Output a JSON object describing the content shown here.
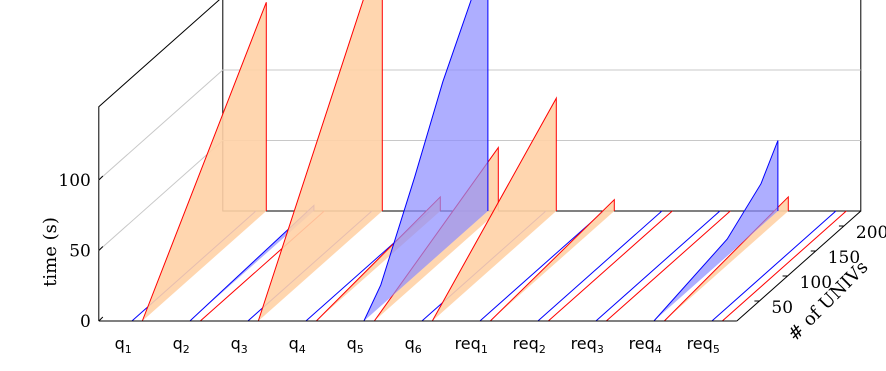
{
  "chart_data": {
    "type": "area",
    "title": "",
    "xlabel": "",
    "ylabel": "# of UNIVs",
    "zlabel": "time (s)",
    "categories": [
      {
        "base": "q",
        "sub": "1"
      },
      {
        "base": "q",
        "sub": "2"
      },
      {
        "base": "q",
        "sub": "3"
      },
      {
        "base": "q",
        "sub": "4"
      },
      {
        "base": "q",
        "sub": "5"
      },
      {
        "base": "q",
        "sub": "6"
      },
      {
        "base": "req",
        "sub": "1"
      },
      {
        "base": "req",
        "sub": "2"
      },
      {
        "base": "req",
        "sub": "3"
      },
      {
        "base": "req",
        "sub": "4"
      },
      {
        "base": "req",
        "sub": "5"
      }
    ],
    "y_ticks": [
      50,
      100,
      150,
      200
    ],
    "z_ticks": [
      0,
      50,
      100
    ],
    "ylim": [
      10,
      230
    ],
    "zlim": [
      0,
      150
    ],
    "grid": true,
    "colors": {
      "system_a": "#ff0000",
      "system_a_fill": "#ffd2a6",
      "system_b": "#0000ff",
      "system_b_fill": "#8c8cff"
    },
    "series": [
      {
        "query": 0,
        "system": "b",
        "values": [
          [
            10,
            0
          ],
          [
            230,
            0
          ]
        ]
      },
      {
        "query": 0,
        "system": "a",
        "values": [
          [
            10,
            0
          ],
          [
            230,
            148
          ]
        ]
      },
      {
        "query": 1,
        "system": "a",
        "values": [
          [
            10,
            0
          ],
          [
            230,
            0
          ]
        ]
      },
      {
        "query": 1,
        "system": "b",
        "values": [
          [
            10,
            0
          ],
          [
            230,
            4
          ]
        ]
      },
      {
        "query": 2,
        "system": "b",
        "values": [
          [
            10,
            0
          ],
          [
            230,
            0
          ]
        ]
      },
      {
        "query": 2,
        "system": "a",
        "values": [
          [
            10,
            0
          ],
          [
            230,
            191
          ]
        ]
      },
      {
        "query": 3,
        "system": "b",
        "values": [
          [
            10,
            0
          ],
          [
            230,
            0
          ]
        ]
      },
      {
        "query": 3,
        "system": "a",
        "values": [
          [
            10,
            0
          ],
          [
            230,
            10
          ]
        ]
      },
      {
        "query": 4,
        "system": "a",
        "values": [
          [
            10,
            0
          ],
          [
            230,
            45
          ]
        ]
      },
      {
        "query": 4,
        "system": "b",
        "values": [
          [
            10,
            0
          ],
          [
            40,
            15
          ],
          [
            100,
            70
          ],
          [
            150,
            120
          ],
          [
            200,
            160
          ],
          [
            230,
            222
          ]
        ]
      },
      {
        "query": 5,
        "system": "b",
        "values": [
          [
            10,
            0
          ],
          [
            230,
            0
          ]
        ]
      },
      {
        "query": 5,
        "system": "a",
        "values": [
          [
            10,
            0
          ],
          [
            230,
            80
          ]
        ]
      },
      {
        "query": 6,
        "system": "b",
        "values": [
          [
            10,
            0
          ],
          [
            230,
            0
          ]
        ]
      },
      {
        "query": 6,
        "system": "a",
        "values": [
          [
            10,
            0
          ],
          [
            230,
            8
          ]
        ]
      },
      {
        "query": 7,
        "system": "a",
        "values": [
          [
            10,
            0
          ],
          [
            230,
            0
          ]
        ]
      },
      {
        "query": 7,
        "system": "b",
        "values": [
          [
            10,
            0
          ],
          [
            230,
            0
          ]
        ]
      },
      {
        "query": 8,
        "system": "a",
        "values": [
          [
            10,
            0
          ],
          [
            230,
            0
          ]
        ]
      },
      {
        "query": 8,
        "system": "b",
        "values": [
          [
            10,
            0
          ],
          [
            230,
            0
          ]
        ]
      },
      {
        "query": 9,
        "system": "a",
        "values": [
          [
            10,
            0
          ],
          [
            230,
            10
          ]
        ]
      },
      {
        "query": 9,
        "system": "b",
        "values": [
          [
            10,
            0
          ],
          [
            140,
            12
          ],
          [
            200,
            30
          ],
          [
            230,
            50
          ]
        ]
      },
      {
        "query": 10,
        "system": "b",
        "values": [
          [
            10,
            0
          ],
          [
            230,
            0
          ]
        ]
      },
      {
        "query": 10,
        "system": "a",
        "values": [
          [
            10,
            0
          ],
          [
            230,
            0
          ]
        ]
      }
    ]
  }
}
